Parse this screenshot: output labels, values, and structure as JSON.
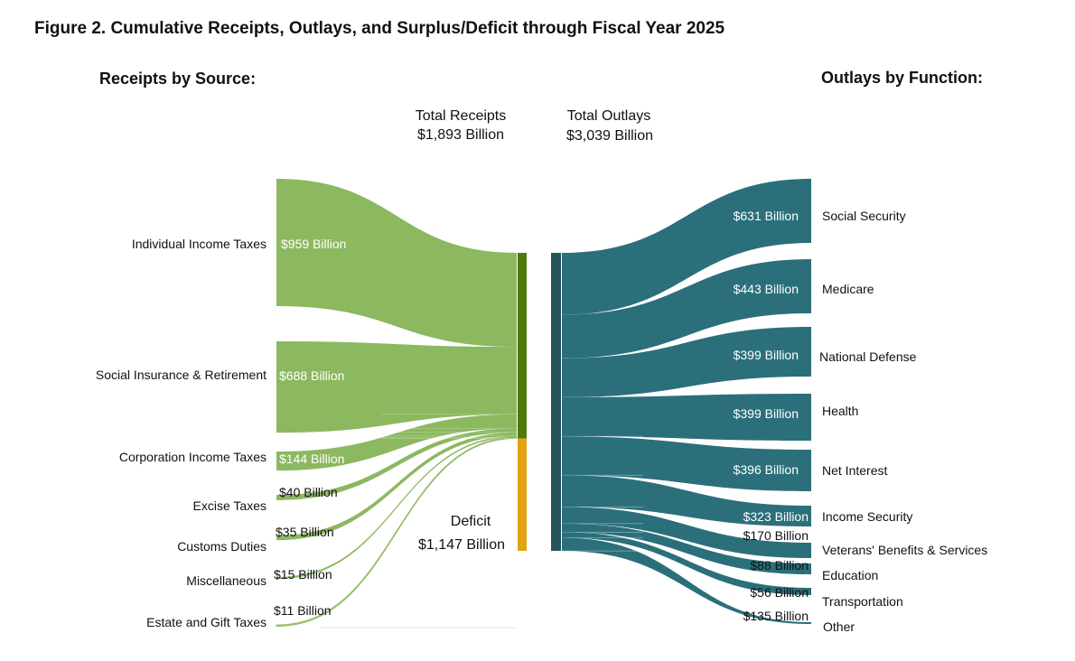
{
  "chart_data": {
    "type": "sankey",
    "title": "Figure 2. Cumulative Receipts, Outlays, and Surplus/Deficit through Fiscal Year 2025",
    "units": "Billion USD",
    "receipts_header": "Receipts by Source:",
    "outlays_header": "Outlays by Function:",
    "total_receipts": {
      "label": "Total Receipts",
      "value_label": "$1,893 Billion",
      "value": 1893
    },
    "total_outlays": {
      "label": "Total Outlays",
      "value_label": "$3,039 Billion",
      "value": 3039
    },
    "deficit": {
      "label": "Deficit",
      "value_label": "$1,147 Billion",
      "value": 1147
    },
    "receipts": [
      {
        "name": "Individual Income Taxes",
        "value": 959,
        "value_label": "$959 Billion"
      },
      {
        "name": "Social Insurance & Retirement",
        "value": 688,
        "value_label": "$688 Billion"
      },
      {
        "name": "Corporation Income Taxes",
        "value": 144,
        "value_label": "$144 Billion"
      },
      {
        "name": "Excise Taxes",
        "value": 40,
        "value_label": "$40 Billion"
      },
      {
        "name": "Customs Duties",
        "value": 35,
        "value_label": "$35 Billion"
      },
      {
        "name": "Miscellaneous",
        "value": 15,
        "value_label": "$15 Billion"
      },
      {
        "name": "Estate and Gift Taxes",
        "value": 11,
        "value_label": "$11 Billion"
      }
    ],
    "outlays": [
      {
        "name": "Social Security",
        "value": 631,
        "value_label": "$631 Billion"
      },
      {
        "name": "Medicare",
        "value": 443,
        "value_label": "$443 Billion"
      },
      {
        "name": "National Defense",
        "value": 399,
        "value_label": "$399 Billion"
      },
      {
        "name": "Health",
        "value": 399,
        "value_label": "$399 Billion"
      },
      {
        "name": "Net Interest",
        "value": 396,
        "value_label": "$396 Billion"
      },
      {
        "name": "Income Security",
        "value": 323,
        "value_label": "$323 Billion"
      },
      {
        "name": "Veterans' Benefits & Services",
        "value": 170,
        "value_label": "$170 Billion"
      },
      {
        "name": "Education",
        "value": 88,
        "value_label": "$88 Billion"
      },
      {
        "name": "Transportation",
        "value": 56,
        "value_label": "$56 Billion"
      },
      {
        "name": "Other",
        "value": 135,
        "value_label": "$135 Billion"
      }
    ],
    "colors": {
      "receipt_flow": "#8cb860",
      "receipt_bar": "#4e7a0f",
      "deficit_bar": "#e0a40c",
      "outlay_flow": "#2b6f7b",
      "outlay_bar": "#24545a"
    }
  }
}
